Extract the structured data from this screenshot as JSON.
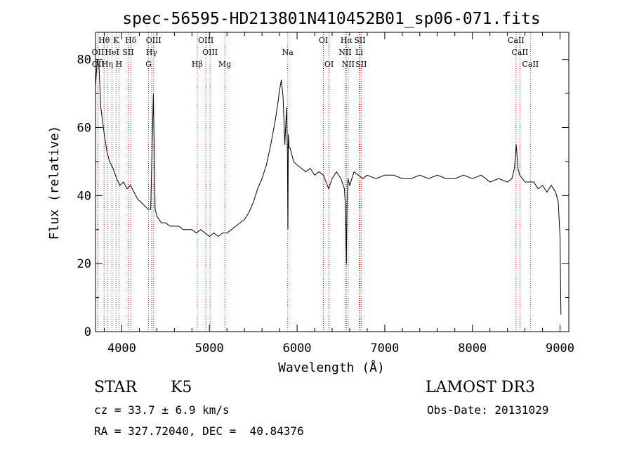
{
  "chart_data": {
    "type": "line",
    "title": "spec-56595-HD213801N410452B01_sp06-071.fits",
    "xlabel": "Wavelength (Å)",
    "ylabel": "Flux (relative)",
    "xlim": [
      3700,
      9100
    ],
    "ylim": [
      0,
      88
    ],
    "xticks": [
      4000,
      5000,
      6000,
      7000,
      8000,
      9000
    ],
    "yticks": [
      0,
      20,
      40,
      60,
      80
    ],
    "grid": false,
    "line_color": "#000000",
    "marker_color": "#b22222",
    "series": [
      {
        "x": [
          3700,
          3720,
          3740,
          3760,
          3780,
          3800,
          3830,
          3860,
          3900,
          3940,
          3980,
          4020,
          4060,
          4100,
          4140,
          4180,
          4220,
          4260,
          4300,
          4330,
          4360,
          4380,
          4400,
          4450,
          4500,
          4550,
          4600,
          4650,
          4700,
          4750,
          4800,
          4850,
          4900,
          4950,
          5000,
          5050,
          5100,
          5150,
          5200,
          5250,
          5300,
          5350,
          5400,
          5450,
          5500,
          5550,
          5600,
          5650,
          5700,
          5750,
          5780,
          5800,
          5820,
          5840,
          5860,
          5880,
          5890,
          5895,
          5900,
          5910,
          5920,
          5940,
          5960,
          6000,
          6050,
          6100,
          6150,
          6200,
          6250,
          6300,
          6330,
          6360,
          6400,
          6450,
          6500,
          6540,
          6555,
          6563,
          6570,
          6580,
          6600,
          6650,
          6700,
          6750,
          6800,
          6900,
          7000,
          7100,
          7200,
          7300,
          7400,
          7500,
          7600,
          7700,
          7800,
          7900,
          8000,
          8100,
          8200,
          8300,
          8400,
          8450,
          8480,
          8500,
          8520,
          8540,
          8600,
          8650,
          8700,
          8750,
          8800,
          8850,
          8900,
          8950,
          8980,
          9000,
          9010
        ],
        "y": [
          72,
          80,
          78,
          66,
          62,
          58,
          53,
          50,
          48,
          45,
          43,
          44,
          42,
          43,
          41,
          39,
          38,
          37,
          36,
          36,
          70,
          36,
          34,
          32,
          32,
          31,
          31,
          31,
          30,
          30,
          30,
          29,
          30,
          29,
          28,
          29,
          28,
          29,
          29,
          30,
          31,
          32,
          33,
          35,
          38,
          42,
          45,
          49,
          55,
          62,
          67,
          71,
          74,
          69,
          55,
          66,
          52,
          30,
          58,
          54,
          54,
          52,
          50,
          49,
          48,
          47,
          48,
          46,
          47,
          46,
          44,
          42,
          45,
          47,
          45,
          42,
          35,
          20,
          38,
          45,
          43,
          47,
          46,
          45,
          46,
          45,
          46,
          46,
          45,
          45,
          46,
          45,
          46,
          45,
          45,
          46,
          45,
          46,
          44,
          45,
          44,
          45,
          48,
          55,
          48,
          46,
          44,
          44,
          44,
          42,
          43,
          41,
          43,
          41,
          38,
          28,
          5
        ]
      }
    ],
    "spectral_lines": [
      {
        "label": "Hθ",
        "x": 3798,
        "row": 1
      },
      {
        "label": "K",
        "x": 3934,
        "row": 1
      },
      {
        "label": "Hδ",
        "x": 4102,
        "row": 1
      },
      {
        "label": "OIII",
        "x": 4363,
        "row": 1
      },
      {
        "label": "OIII",
        "x": 4959,
        "row": 1
      },
      {
        "label": "OI",
        "x": 6300,
        "row": 1
      },
      {
        "label": "Hα",
        "x": 6563,
        "row": 1
      },
      {
        "label": "SII",
        "x": 6716,
        "row": 1
      },
      {
        "label": "CaII",
        "x": 8498,
        "row": 1
      },
      {
        "label": "OII",
        "x": 3727,
        "row": 2
      },
      {
        "label": "HeI",
        "x": 3889,
        "row": 2
      },
      {
        "label": "SII",
        "x": 4072,
        "row": 2
      },
      {
        "label": "Hγ",
        "x": 4340,
        "row": 2
      },
      {
        "label": "OIII",
        "x": 5007,
        "row": 2
      },
      {
        "label": "Na",
        "x": 5893,
        "row": 2
      },
      {
        "label": "NII",
        "x": 6548,
        "row": 2
      },
      {
        "label": "Li",
        "x": 6708,
        "row": 2
      },
      {
        "label": "CaII",
        "x": 8542,
        "row": 2
      },
      {
        "label": "OII",
        "x": 3729,
        "row": 3
      },
      {
        "label": "Hη",
        "x": 3835,
        "row": 3
      },
      {
        "label": "H",
        "x": 3968,
        "row": 3
      },
      {
        "label": "G",
        "x": 4305,
        "row": 3
      },
      {
        "label": "Hβ",
        "x": 4861,
        "row": 3
      },
      {
        "label": "Mg",
        "x": 5175,
        "row": 3
      },
      {
        "label": "OI",
        "x": 6364,
        "row": 3
      },
      {
        "label": "NII",
        "x": 6583,
        "row": 3
      },
      {
        "label": "SII",
        "x": 6731,
        "row": 3
      },
      {
        "label": "CaII",
        "x": 8662,
        "row": 3
      }
    ]
  },
  "info": {
    "class": "STAR",
    "subclass": "K5",
    "survey": "LAMOST DR3",
    "cz": "cz = 33.7 ± 6.9 km/s",
    "obs_date": "Obs-Date: 20131029",
    "coords": "RA = 327.72040, DEC =  40.84376"
  }
}
